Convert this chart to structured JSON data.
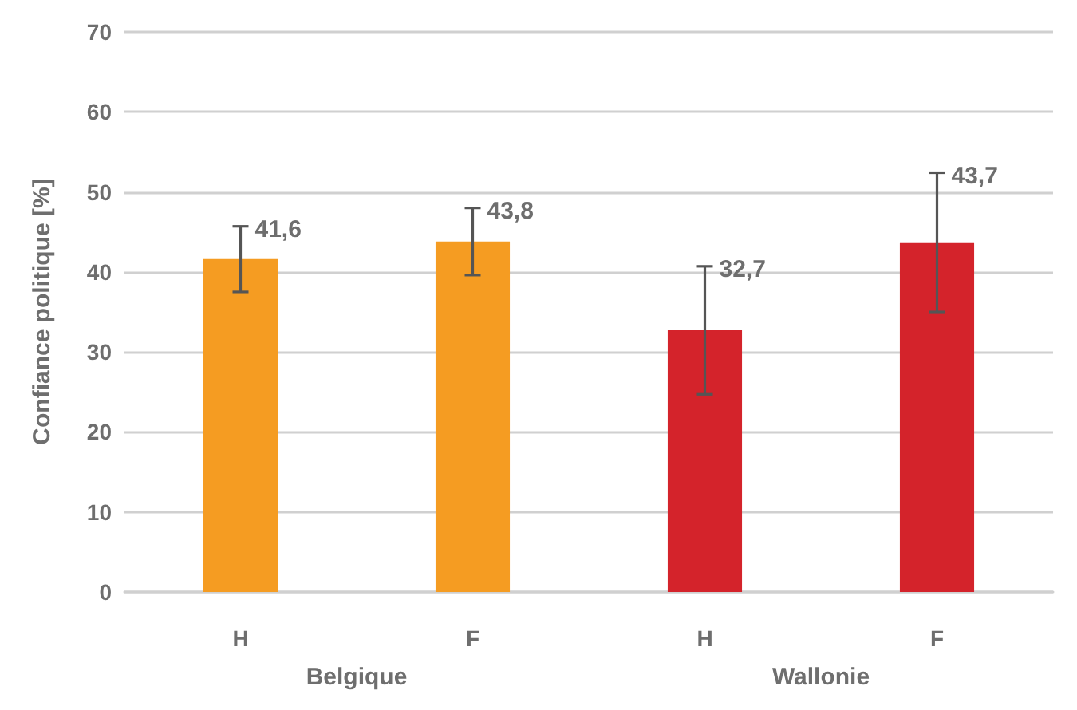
{
  "chart_data": {
    "type": "bar",
    "ylabel": "Confiance politique [%]",
    "categories": [
      "H",
      "F",
      "H",
      "F"
    ],
    "values": [
      41.6,
      43.8,
      32.7,
      43.7
    ],
    "colors": [
      "#f59c22",
      "#f59c22",
      "#d4232b",
      "#d4232b"
    ],
    "errors": [
      4.1,
      4.2,
      8,
      8.7
    ],
    "value_labels": [
      "41,6",
      "43,8",
      "32,7",
      "43,7"
    ],
    "annotations": [
      "Belgique",
      "Wallonie"
    ],
    "ylim": [
      0,
      70
    ],
    "yticks": [
      0,
      10,
      20,
      30,
      40,
      50,
      60,
      70
    ],
    "grid": "y"
  }
}
